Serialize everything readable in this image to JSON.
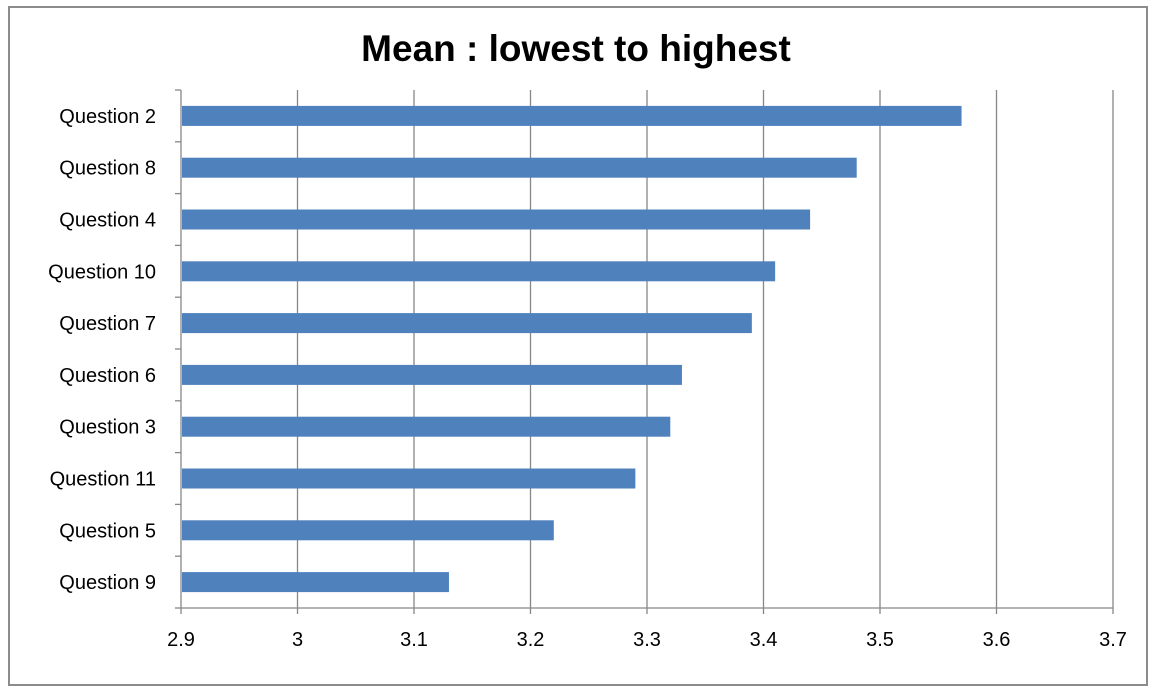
{
  "chart_data": {
    "type": "bar",
    "orientation": "horizontal",
    "title": "Mean : lowest to highest",
    "xlabel": "",
    "ylabel": "",
    "categories": [
      "Question 2",
      "Question 8",
      "Question 4",
      "Question 10",
      "Question 7",
      "Question 6",
      "Question 3",
      "Question 11",
      "Question 5",
      "Question 9"
    ],
    "values": [
      3.57,
      3.48,
      3.44,
      3.41,
      3.39,
      3.33,
      3.32,
      3.29,
      3.22,
      3.13
    ],
    "xlim": [
      2.9,
      3.7
    ],
    "xticks": [
      "2.9",
      "3",
      "3.1",
      "3.2",
      "3.3",
      "3.4",
      "3.5",
      "3.6",
      "3.7"
    ],
    "grid": "vertical",
    "legend": "none",
    "colors": {
      "bar": "#4f81bd",
      "grid": "#878787",
      "axis": "#878787",
      "border": "#8c8c8c"
    }
  }
}
